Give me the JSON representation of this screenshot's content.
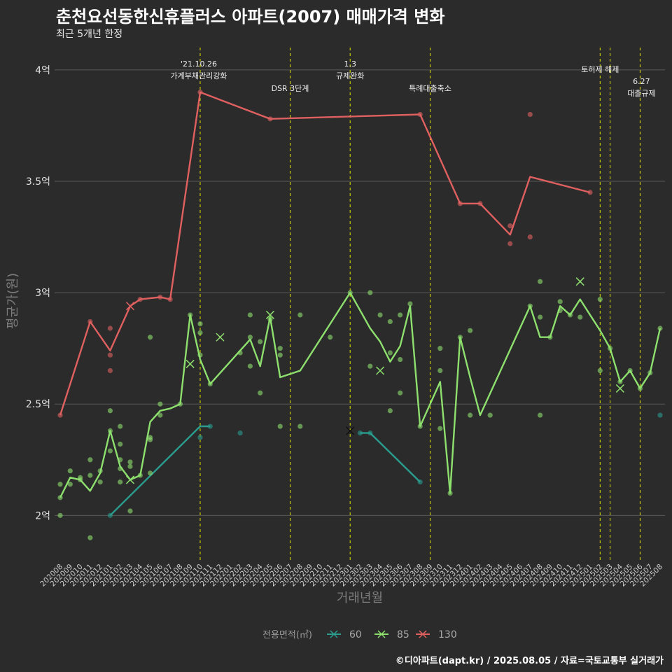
{
  "title": "춘천요선동한신휴플러스 아파트(2007) 매매가격 변화",
  "subtitle": "최근 5개년 한정",
  "footer": "©디아파트(dapt.kr) / 2025.08.05 / 자료=국토교통부 실거래가",
  "colors": {
    "background": "#2b2b2b",
    "grid": "#595959",
    "event_line": "#e6e600",
    "s60": "#2a9d8f",
    "s85": "#8ee06e",
    "s130": "#e06060"
  },
  "chart_data": {
    "type": "line",
    "xlabel": "거래년월",
    "ylabel": "평균가(원)",
    "ylim": [
      1.8,
      4.1
    ],
    "y_ticks": [
      2,
      2.5,
      3,
      3.5,
      4
    ],
    "y_tick_labels": [
      "2억",
      "2.5억",
      "3억",
      "3.5억",
      "4억"
    ],
    "categories": [
      "202008",
      "202009",
      "202010",
      "202011",
      "202012",
      "202101",
      "202102",
      "202103",
      "202104",
      "202105",
      "202106",
      "202107",
      "202108",
      "202109",
      "202110",
      "202111",
      "202112",
      "202201",
      "202202",
      "202203",
      "202204",
      "202205",
      "202206",
      "202207",
      "202208",
      "202209",
      "202210",
      "202211",
      "202212",
      "202301",
      "202302",
      "202303",
      "202304",
      "202305",
      "202306",
      "202307",
      "202308",
      "202309",
      "202310",
      "202311",
      "202312",
      "202401",
      "202402",
      "202403",
      "202404",
      "202405",
      "202406",
      "202407",
      "202408",
      "202409",
      "202410",
      "202411",
      "202412",
      "202501",
      "202502",
      "202503",
      "202504",
      "202505",
      "202506",
      "202507",
      "202508"
    ],
    "legend_title": "전용면적(㎡)",
    "legend_position": "bottom",
    "events": [
      {
        "date": "202110",
        "label": "'21.10.26 가계부채관리강화",
        "line1": "'21.10.26",
        "line2": "가계부채관리강화"
      },
      {
        "date": "202207",
        "label": "DSR 3단계",
        "line1": "",
        "line2": "DSR 3단계"
      },
      {
        "date": "202301",
        "label": "1.3 규제완화",
        "line1": "1.3",
        "line2": "규제완화"
      },
      {
        "date": "202309",
        "label": "특례대출축소",
        "line1": "",
        "line2": "특례대출축소"
      },
      {
        "date": "202502",
        "label": "토허제 해제",
        "line1": "",
        "line2": "토허제 해제"
      },
      {
        "date": "202503",
        "label": "",
        "line1": "",
        "line2": ""
      },
      {
        "date": "202506",
        "label": "6.27 대출규제",
        "line1": "6.27",
        "line2": "대출규제"
      }
    ],
    "series": [
      {
        "name": "60",
        "color": "#2a9d8f",
        "line": [
          [
            "202101",
            2.0
          ],
          [
            "202110",
            2.4
          ],
          [
            "202111",
            2.4
          ]
        ],
        "line2": [
          [
            "202302",
            2.37
          ],
          [
            "202303",
            2.37
          ],
          [
            "202308",
            2.15
          ]
        ],
        "points": [
          [
            "202101",
            2.0
          ],
          [
            "202110",
            2.35
          ],
          [
            "202111",
            2.4
          ],
          [
            "202202",
            2.37
          ],
          [
            "202302",
            2.37
          ],
          [
            "202303",
            2.37
          ],
          [
            "202308",
            2.15
          ],
          [
            "202508",
            2.45
          ]
        ],
        "crosses": [
          [
            "202301",
            2.38
          ]
        ]
      },
      {
        "name": "85",
        "color": "#8ee06e",
        "line": [
          [
            "202008",
            2.08
          ],
          [
            "202009",
            2.17
          ],
          [
            "202010",
            2.16
          ],
          [
            "202011",
            2.11
          ],
          [
            "202012",
            2.19
          ],
          [
            "202101",
            2.38
          ],
          [
            "202102",
            2.22
          ],
          [
            "202103",
            2.16
          ],
          [
            "202104",
            2.18
          ],
          [
            "202105",
            2.42
          ],
          [
            "202106",
            2.47
          ],
          [
            "202107",
            2.48
          ],
          [
            "202108",
            2.5
          ],
          [
            "202109",
            2.9
          ],
          [
            "202110",
            2.7
          ],
          [
            "202111",
            2.59
          ],
          [
            "202202",
            2.74
          ],
          [
            "202203",
            2.79
          ],
          [
            "202204",
            2.67
          ],
          [
            "202205",
            2.89
          ],
          [
            "202206",
            2.62
          ],
          [
            "202208",
            2.65
          ],
          [
            "202301",
            3.0
          ],
          [
            "202303",
            2.84
          ],
          [
            "202304",
            2.78
          ],
          [
            "202305",
            2.69
          ],
          [
            "202306",
            2.76
          ],
          [
            "202307",
            2.94
          ],
          [
            "202308",
            2.4
          ],
          [
            "202310",
            2.6
          ],
          [
            "202311",
            2.1
          ],
          [
            "202312",
            2.8
          ],
          [
            "202401",
            2.62
          ],
          [
            "202402",
            2.45
          ],
          [
            "202407",
            2.94
          ],
          [
            "202408",
            2.8
          ],
          [
            "202409",
            2.8
          ],
          [
            "202410",
            2.94
          ],
          [
            "202411",
            2.9
          ],
          [
            "202412",
            2.97
          ],
          [
            "202502",
            2.83
          ],
          [
            "202503",
            2.75
          ],
          [
            "202504",
            2.6
          ],
          [
            "202505",
            2.65
          ],
          [
            "202506",
            2.57
          ],
          [
            "202507",
            2.64
          ],
          [
            "202508",
            2.84
          ]
        ],
        "points": [
          [
            "202008",
            2.0
          ],
          [
            "202008",
            2.08
          ],
          [
            "202008",
            2.14
          ],
          [
            "202009",
            2.14
          ],
          [
            "202009",
            2.2
          ],
          [
            "202010",
            2.16
          ],
          [
            "202010",
            2.17
          ],
          [
            "202011",
            1.9
          ],
          [
            "202011",
            2.18
          ],
          [
            "202011",
            2.25
          ],
          [
            "202012",
            2.15
          ],
          [
            "202012",
            2.2
          ],
          [
            "202101",
            2.29
          ],
          [
            "202101",
            2.38
          ],
          [
            "202101",
            2.47
          ],
          [
            "202102",
            2.15
          ],
          [
            "202102",
            2.21
          ],
          [
            "202102",
            2.25
          ],
          [
            "202102",
            2.32
          ],
          [
            "202102",
            2.4
          ],
          [
            "202103",
            2.02
          ],
          [
            "202103",
            2.22
          ],
          [
            "202103",
            2.24
          ],
          [
            "202104",
            2.18
          ],
          [
            "202105",
            2.19
          ],
          [
            "202105",
            2.34
          ],
          [
            "202105",
            2.35
          ],
          [
            "202105",
            2.8
          ],
          [
            "202106",
            2.45
          ],
          [
            "202106",
            2.5
          ],
          [
            "202108",
            2.5
          ],
          [
            "202109",
            2.9
          ],
          [
            "202110",
            2.72
          ],
          [
            "202110",
            2.82
          ],
          [
            "202110",
            2.86
          ],
          [
            "202111",
            2.59
          ],
          [
            "202202",
            2.73
          ],
          [
            "202203",
            2.67
          ],
          [
            "202203",
            2.8
          ],
          [
            "202203",
            2.9
          ],
          [
            "202204",
            2.55
          ],
          [
            "202204",
            2.78
          ],
          [
            "202205",
            2.88
          ],
          [
            "202206",
            2.4
          ],
          [
            "202206",
            2.72
          ],
          [
            "202206",
            2.75
          ],
          [
            "202208",
            2.4
          ],
          [
            "202208",
            2.9
          ],
          [
            "202211",
            2.8
          ],
          [
            "202301",
            3.0
          ],
          [
            "202303",
            2.67
          ],
          [
            "202303",
            3.0
          ],
          [
            "202304",
            2.9
          ],
          [
            "202305",
            2.47
          ],
          [
            "202305",
            2.73
          ],
          [
            "202305",
            2.87
          ],
          [
            "202306",
            2.55
          ],
          [
            "202306",
            2.7
          ],
          [
            "202306",
            2.9
          ],
          [
            "202307",
            2.95
          ],
          [
            "202308",
            2.4
          ],
          [
            "202310",
            2.39
          ],
          [
            "202310",
            2.65
          ],
          [
            "202310",
            2.75
          ],
          [
            "202311",
            2.1
          ],
          [
            "202312",
            2.8
          ],
          [
            "202401",
            2.45
          ],
          [
            "202401",
            2.83
          ],
          [
            "202403",
            2.45
          ],
          [
            "202407",
            2.94
          ],
          [
            "202408",
            2.45
          ],
          [
            "202408",
            2.89
          ],
          [
            "202408",
            3.05
          ],
          [
            "202409",
            2.8
          ],
          [
            "202410",
            2.92
          ],
          [
            "202410",
            2.96
          ],
          [
            "202411",
            2.9
          ],
          [
            "202412",
            2.89
          ],
          [
            "202502",
            2.65
          ],
          [
            "202502",
            2.97
          ],
          [
            "202503",
            2.75
          ],
          [
            "202504",
            2.6
          ],
          [
            "202505",
            2.65
          ],
          [
            "202506",
            2.57
          ],
          [
            "202507",
            2.64
          ],
          [
            "202508",
            2.84
          ]
        ],
        "crosses": [
          [
            "202103",
            2.16
          ],
          [
            "202109",
            2.68
          ],
          [
            "202112",
            2.8
          ],
          [
            "202205",
            2.9
          ],
          [
            "202304",
            2.65
          ],
          [
            "202412",
            3.05
          ],
          [
            "202504",
            2.57
          ]
        ]
      },
      {
        "name": "130",
        "color": "#e06060",
        "line": [
          [
            "202008",
            2.45
          ],
          [
            "202011",
            2.87
          ],
          [
            "202101",
            2.74
          ],
          [
            "202103",
            2.94
          ],
          [
            "202104",
            2.97
          ],
          [
            "202106",
            2.98
          ],
          [
            "202107",
            2.97
          ],
          [
            "202110",
            3.9
          ],
          [
            "202205",
            3.78
          ],
          [
            "202308",
            3.8
          ],
          [
            "202312",
            3.4
          ],
          [
            "202402",
            3.4
          ],
          [
            "202405",
            3.26
          ],
          [
            "202407",
            3.52
          ],
          [
            "202501",
            3.45
          ]
        ],
        "points": [
          [
            "202008",
            2.45
          ],
          [
            "202011",
            2.87
          ],
          [
            "202101",
            2.65
          ],
          [
            "202101",
            2.72
          ],
          [
            "202101",
            2.84
          ],
          [
            "202104",
            2.97
          ],
          [
            "202106",
            2.98
          ],
          [
            "202107",
            2.97
          ],
          [
            "202110",
            3.9
          ],
          [
            "202205",
            3.78
          ],
          [
            "202308",
            3.8
          ],
          [
            "202312",
            3.4
          ],
          [
            "202402",
            3.4
          ],
          [
            "202405",
            3.22
          ],
          [
            "202405",
            3.3
          ],
          [
            "202407",
            3.25
          ],
          [
            "202407",
            3.8
          ],
          [
            "202501",
            3.45
          ]
        ],
        "crosses": [
          [
            "202103",
            2.94
          ]
        ]
      }
    ]
  }
}
